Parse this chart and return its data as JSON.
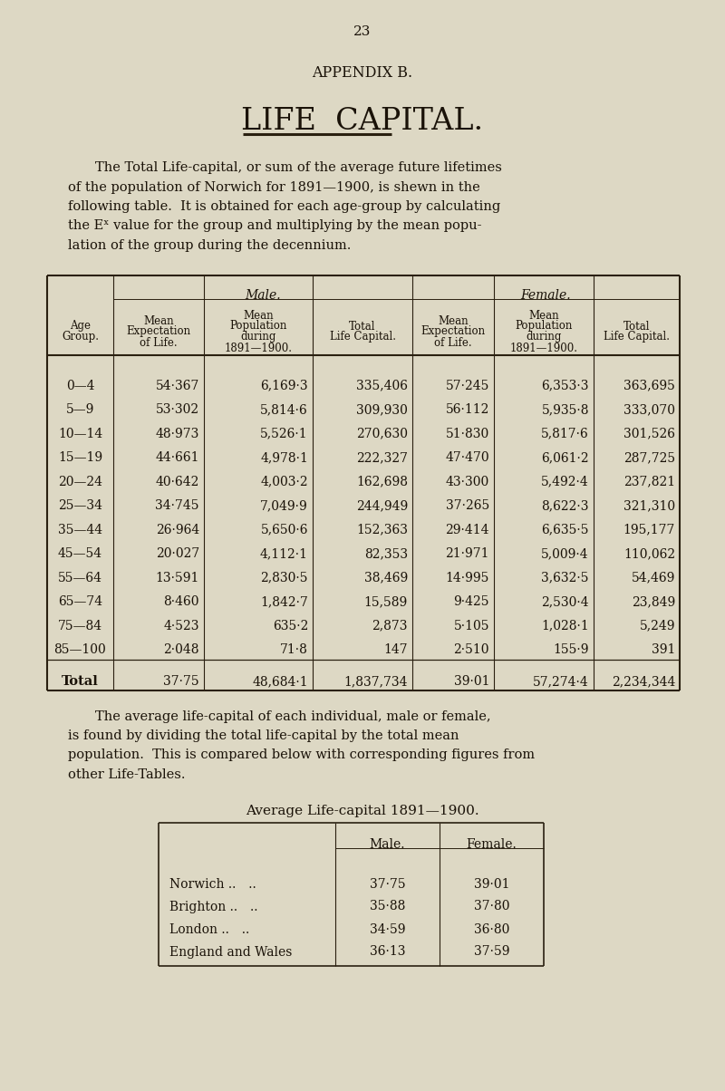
{
  "bg_color": "#ddd8c4",
  "page_number": "23",
  "appendix_title": "APPENDIX B.",
  "main_title": "LIFE  CAPITAL.",
  "body1_lines": [
    "The Total Life-capital, or sum of the average future lifetimes",
    "of the population of Norwich for 1891—1900, is shewn in the",
    "following table.  It is obtained for each age-group by calculating",
    "the Eˣ value for the group and multiplying by the mean popu-",
    "lation of the group during the decennium."
  ],
  "table1_data": [
    [
      "0—4",
      "54·367",
      "6,169·3",
      "335,406",
      "57·245",
      "6,353·3",
      "363,695"
    ],
    [
      "5—9",
      "53·302",
      "5,814·6",
      "309,930",
      "56·112",
      "5,935·8",
      "333,070"
    ],
    [
      "10—14",
      "48·973",
      "5,526·1",
      "270,630",
      "51·830",
      "5,817·6",
      "301,526"
    ],
    [
      "15—19",
      "44·661",
      "4,978·1",
      "222,327",
      "47·470",
      "6,061·2",
      "287,725"
    ],
    [
      "20—24",
      "40·642",
      "4,003·2",
      "162,698",
      "43·300",
      "5,492·4",
      "237,821"
    ],
    [
      "25—34",
      "34·745",
      "7,049·9",
      "244,949",
      "37·265",
      "8,622·3",
      "321,310"
    ],
    [
      "35—44",
      "26·964",
      "5,650·6",
      "152,363",
      "29·414",
      "6,635·5",
      "195,177"
    ],
    [
      "45—54",
      "20·027",
      "4,112·1",
      "82,353",
      "21·971",
      "5,009·4",
      "110,062"
    ],
    [
      "55—64",
      "13·591",
      "2,830·5",
      "38,469",
      "14·995",
      "3,632·5",
      "54,469"
    ],
    [
      "65—74",
      "8·460",
      "1,842·7",
      "15,589",
      "9·425",
      "2,530·4",
      "23,849"
    ],
    [
      "75—84",
      "4·523",
      "635·2",
      "2,873",
      "5·105",
      "1,028·1",
      "5,249"
    ],
    [
      "85—100",
      "2·048",
      "71·8",
      "147",
      "2·510",
      "155·9",
      "391"
    ]
  ],
  "table1_total": [
    "Total",
    "37·75",
    "48,684·1",
    "1,837,734",
    "39·01",
    "57,274·4",
    "2,234,344"
  ],
  "body2_lines": [
    "The average life-capital of each individual, male or female,",
    "is found by dividing the total life-capital by the total mean",
    "population.  This is compared below with corresponding figures from",
    "other Life-Tables."
  ],
  "table2_title": "Average Life-capital 1891—1900.",
  "table2_data": [
    [
      "Norwich .. ..",
      "37·75",
      "39·01"
    ],
    [
      "Brighton .. ..",
      "35·88",
      "37·80"
    ],
    [
      "London .. ..",
      "34·59",
      "36·80"
    ],
    [
      "England and Wales",
      "36·13",
      "37·59"
    ]
  ],
  "text_color": "#1a1208",
  "line_color": "#2a2010"
}
